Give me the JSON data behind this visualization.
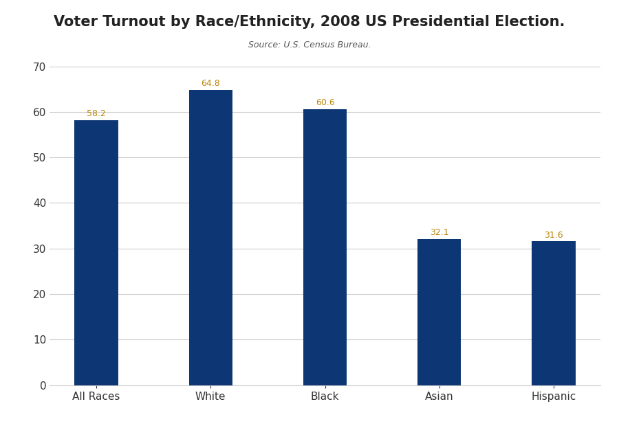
{
  "categories": [
    "All Races",
    "White",
    "Black",
    "Asian",
    "Hispanic"
  ],
  "values": [
    58.2,
    64.8,
    60.6,
    32.1,
    31.6
  ],
  "bar_color": "#0d3674",
  "title": "Voter Turnout by Race/Ethnicity, 2008 US Presidential Election.",
  "subtitle": "Source: U.S. Census Bureau.",
  "title_color": "#222222",
  "subtitle_color": "#555555",
  "title_fontsize": 15,
  "subtitle_fontsize": 9,
  "ylim": [
    0,
    70
  ],
  "yticks": [
    0,
    10,
    20,
    30,
    40,
    50,
    60,
    70
  ],
  "label_colors": [
    "#333333",
    "#333333",
    "#333333",
    "#333333",
    "#cc4400"
  ],
  "bar_value_color": "#b8860b",
  "bar_value_fontsize": 9,
  "tick_label_fontsize": 11,
  "background_color": "#ffffff",
  "grid_color": "#cccccc"
}
